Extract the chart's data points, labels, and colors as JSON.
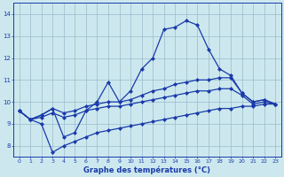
{
  "hours": [
    0,
    1,
    2,
    3,
    4,
    5,
    6,
    7,
    8,
    9,
    10,
    11,
    12,
    13,
    14,
    15,
    16,
    17,
    18,
    19,
    20,
    21,
    22,
    23
  ],
  "line_upper": [
    9.6,
    9.2,
    9.4,
    9.7,
    8.4,
    8.6,
    9.6,
    10.0,
    10.9,
    10.0,
    10.5,
    11.5,
    12.0,
    13.3,
    13.4,
    13.7,
    13.5,
    12.4,
    11.5,
    11.2,
    10.4,
    10.0,
    10.1,
    9.9
  ],
  "line_mid_upper": [
    9.6,
    9.2,
    9.4,
    9.7,
    9.5,
    9.6,
    9.8,
    9.9,
    10.0,
    10.0,
    10.1,
    10.3,
    10.5,
    10.6,
    10.8,
    10.9,
    11.0,
    11.0,
    11.1,
    11.1,
    10.4,
    10.0,
    10.1,
    9.9
  ],
  "line_mid_lower": [
    9.6,
    9.2,
    9.3,
    9.5,
    9.3,
    9.4,
    9.6,
    9.7,
    9.8,
    9.8,
    9.9,
    10.0,
    10.1,
    10.2,
    10.3,
    10.4,
    10.5,
    10.5,
    10.6,
    10.6,
    10.3,
    9.9,
    10.0,
    9.9
  ],
  "line_lower": [
    9.6,
    9.2,
    9.0,
    7.7,
    8.0,
    8.2,
    8.4,
    8.6,
    8.7,
    8.8,
    8.9,
    9.0,
    9.1,
    9.2,
    9.3,
    9.4,
    9.5,
    9.6,
    9.7,
    9.7,
    9.8,
    9.8,
    9.9,
    9.9
  ],
  "bg_color": "#cce8ee",
  "grid_color": "#99bbcc",
  "line_color": "#1a3aaa",
  "xlabel": "Graphe des températures (°C)",
  "ylim": [
    7.5,
    14.5
  ],
  "xlim": [
    0,
    23
  ],
  "yticks": [
    8,
    9,
    10,
    11,
    12,
    13,
    14
  ],
  "xticks": [
    0,
    1,
    2,
    3,
    4,
    5,
    6,
    7,
    8,
    9,
    10,
    11,
    12,
    13,
    14,
    15,
    16,
    17,
    18,
    19,
    20,
    21,
    22,
    23
  ]
}
